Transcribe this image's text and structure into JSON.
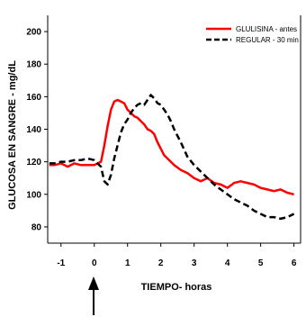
{
  "chart_data": {
    "type": "line",
    "xlabel": "TIEMPO- horas",
    "ylabel": "GLUCOSA EN SANGRE - mg/dL",
    "xlim": [
      -1.4,
      6.2
    ],
    "ylim": [
      70,
      210
    ],
    "xticks": [
      -1,
      0,
      1,
      2,
      3,
      4,
      5,
      6
    ],
    "yticks": [
      80,
      100,
      120,
      140,
      160,
      180,
      200
    ],
    "legend_position": "top-right",
    "annotation": "arrow at time 0",
    "series": [
      {
        "name": "GLULISINA - antes",
        "color": "#ff0000",
        "dash": "solid",
        "x": [
          -1.35,
          -1.2,
          -1.0,
          -0.8,
          -0.6,
          -0.4,
          -0.2,
          0.0,
          0.2,
          0.3,
          0.4,
          0.5,
          0.6,
          0.7,
          0.8,
          0.9,
          1.0,
          1.1,
          1.2,
          1.3,
          1.4,
          1.5,
          1.6,
          1.7,
          1.8,
          1.9,
          2.0,
          2.1,
          2.2,
          2.3,
          2.4,
          2.6,
          2.8,
          3.0,
          3.2,
          3.4,
          3.6,
          3.8,
          4.0,
          4.2,
          4.4,
          4.6,
          4.8,
          5.0,
          5.2,
          5.4,
          5.6,
          5.8,
          6.0
        ],
        "y": [
          118,
          118,
          119,
          117,
          119,
          118,
          118,
          118,
          120,
          130,
          142,
          152,
          157,
          158,
          157,
          156,
          152,
          150,
          148,
          147,
          145,
          143,
          140,
          139,
          137,
          132,
          128,
          124,
          122,
          120,
          118,
          115,
          113,
          110,
          108,
          110,
          107,
          106,
          104,
          107,
          108,
          107,
          106,
          104,
          103,
          102,
          103,
          101,
          100
        ]
      },
      {
        "name": "REGULAR - 30 min",
        "color": "#000000",
        "dash": "dashed",
        "x": [
          -1.35,
          -1.2,
          -1.0,
          -0.8,
          -0.6,
          -0.4,
          -0.2,
          0.0,
          0.2,
          0.3,
          0.4,
          0.5,
          0.6,
          0.7,
          0.8,
          0.9,
          1.0,
          1.1,
          1.2,
          1.3,
          1.4,
          1.5,
          1.6,
          1.7,
          1.8,
          1.9,
          2.0,
          2.1,
          2.2,
          2.3,
          2.4,
          2.6,
          2.8,
          3.0,
          3.2,
          3.4,
          3.6,
          3.8,
          4.0,
          4.2,
          4.4,
          4.6,
          4.8,
          5.0,
          5.2,
          5.4,
          5.6,
          5.8,
          6.0
        ],
        "y": [
          119,
          119,
          120,
          120,
          121,
          121,
          122,
          121,
          117,
          108,
          106,
          112,
          122,
          130,
          138,
          143,
          146,
          150,
          153,
          155,
          156,
          155,
          158,
          161,
          159,
          156,
          155,
          152,
          149,
          145,
          140,
          132,
          123,
          118,
          114,
          110,
          106,
          103,
          100,
          97,
          95,
          93,
          90,
          88,
          86,
          86,
          85,
          86,
          88
        ]
      }
    ]
  }
}
